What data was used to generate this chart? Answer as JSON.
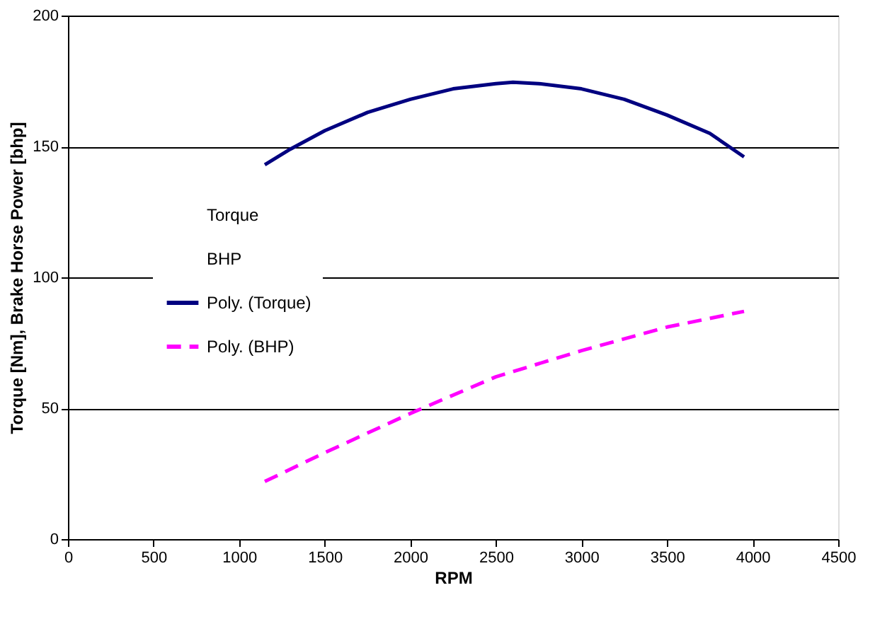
{
  "chart_data": {
    "type": "line",
    "xlabel": "RPM",
    "ylabel": "Torque [Nm], Brake Horse Power [bhp]",
    "xlim": [
      0,
      4500
    ],
    "xticks": [
      0,
      500,
      1000,
      1500,
      2000,
      2500,
      3000,
      3500,
      4000,
      4500
    ],
    "ylim": [
      0,
      200
    ],
    "yticks": [
      0,
      50,
      100,
      150,
      200
    ],
    "grid": "y",
    "legend": "left",
    "marker": "none",
    "series": [
      {
        "name": "Torque"
      },
      {
        "name": "BHP"
      },
      {
        "name": "Poly. (Torque)",
        "color": "#000080",
        "line_style": "solid",
        "x": [
          1150,
          1300,
          1500,
          1750,
          2000,
          2250,
          2500,
          2600,
          2750,
          3000,
          3250,
          3500,
          3750,
          3950
        ],
        "values": [
          143,
          149,
          156,
          163,
          168,
          172,
          174,
          174.5,
          174,
          172,
          168,
          162,
          155,
          146
        ]
      },
      {
        "name": "Poly. (BHP)",
        "color": "#ff00ff",
        "line_style": "dashed",
        "x": [
          1150,
          1500,
          2000,
          2500,
          3000,
          3500,
          3950
        ],
        "values": [
          22,
          33,
          48,
          62,
          72,
          81,
          87
        ]
      }
    ]
  }
}
